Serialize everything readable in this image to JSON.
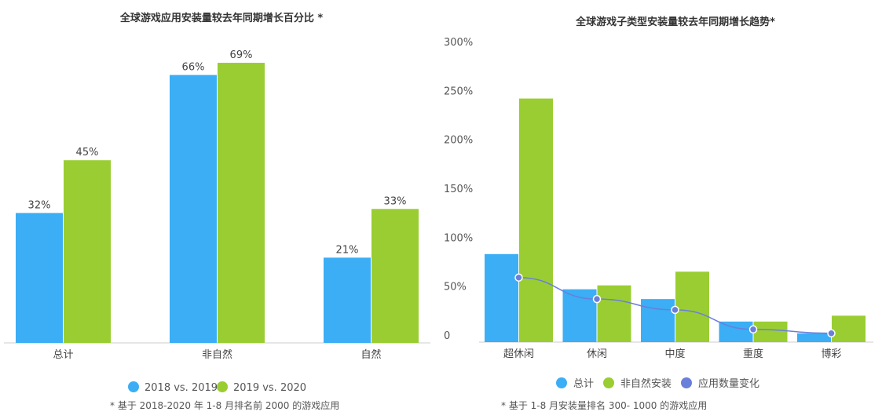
{
  "chart_data": [
    {
      "type": "bar",
      "title": "全球游戏应用安装量较去年同期增长百分比 *",
      "categories": [
        "总计",
        "非自然",
        "自然"
      ],
      "series": [
        {
          "name": "2018 vs. 2019",
          "values": [
            32,
            66,
            21
          ],
          "labels": [
            "32%",
            "66%",
            "21%"
          ],
          "color": "#3BAEF5"
        },
        {
          "name": "2019 vs. 2020",
          "values": [
            45,
            69,
            33
          ],
          "labels": [
            "45%",
            "69%",
            "33%"
          ],
          "color": "#9ACD32"
        }
      ],
      "ylim": [
        0,
        75
      ],
      "grid": false,
      "legend": "bottom",
      "footnote": "* 基于 2018-2020 年 1-8 月排名前 2000 的游戏应用"
    },
    {
      "type": "bar",
      "title": "全球游戏子类型安装量较去年同期增长趋势*",
      "categories": [
        "超休闲",
        "休闲",
        "中度",
        "重度",
        "博彩"
      ],
      "yticks": [
        "0",
        "50%",
        "100%",
        "150%",
        "200%",
        "250%",
        "300%"
      ],
      "ylim": [
        0,
        300
      ],
      "series": [
        {
          "name": "总计",
          "type": "bar",
          "values": [
            90,
            54,
            44,
            21,
            9
          ],
          "color": "#3BAEF5"
        },
        {
          "name": "非自然安装",
          "type": "bar",
          "values": [
            249,
            58,
            72,
            21,
            27
          ],
          "color": "#9ACD32"
        },
        {
          "name": "应用数量变化",
          "type": "line",
          "values": [
            66,
            44,
            33,
            13,
            9
          ],
          "color": "#6A7FDB"
        }
      ],
      "grid": false,
      "legend": "bottom",
      "footnote": "* 基于 1-8 月安装量排名 300- 1000 的游戏应用"
    }
  ]
}
